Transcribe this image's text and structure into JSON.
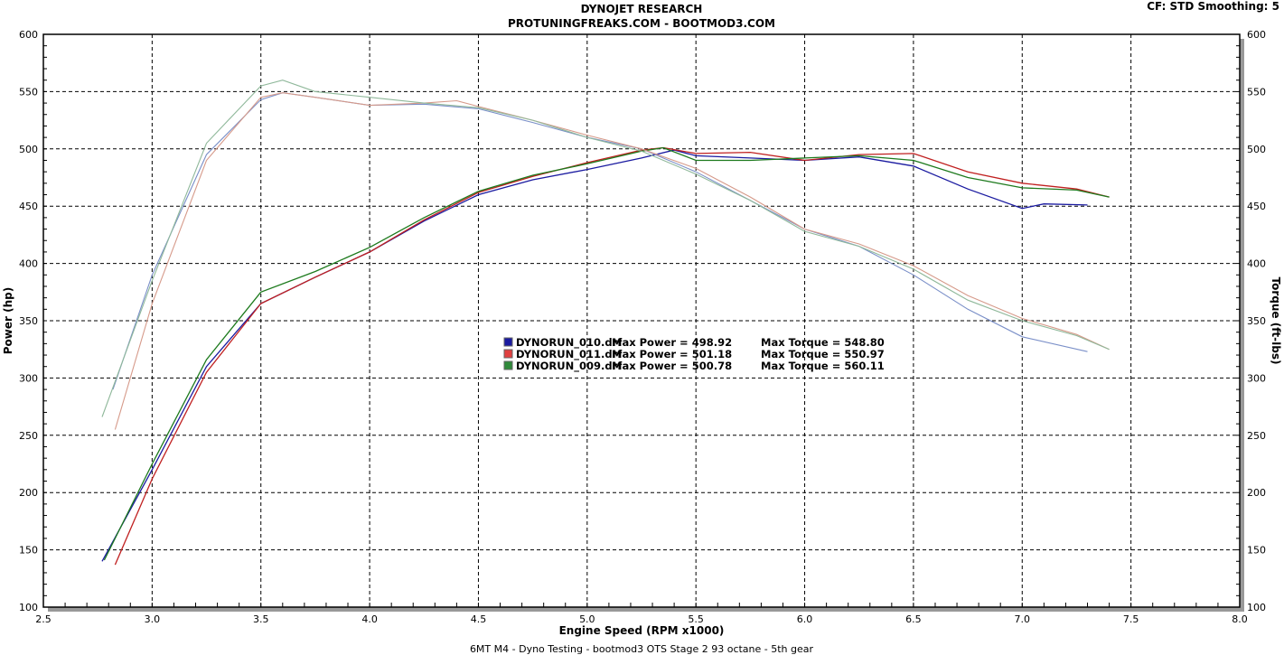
{
  "header": {
    "title": "DYNOJET RESEARCH",
    "subtitle": "PROTUNINGFREAKS.COM - BOOTMOD3.COM",
    "settings": "CF: STD  Smoothing: 5"
  },
  "footer": {
    "caption": "6MT M4 - Dyno Testing - bootmod3 OTS Stage 2 93 octane - 5th gear"
  },
  "chart_data": {
    "type": "line",
    "xlabel": "Engine Speed (RPM x1000)",
    "ylabel": "Power (hp)",
    "y2label": "Torque (ft-lbs)",
    "xlim": [
      2.5,
      8.0
    ],
    "ylim": [
      100,
      600
    ],
    "y2lim": [
      100,
      600
    ],
    "xticks": [
      "2.5",
      "3.0",
      "3.5",
      "4.0",
      "4.5",
      "5.0",
      "5.5",
      "6.0",
      "6.5",
      "7.0",
      "7.5",
      "8.0"
    ],
    "yticks": [
      "100",
      "150",
      "200",
      "250",
      "300",
      "350",
      "400",
      "450",
      "500",
      "550",
      "600"
    ],
    "grid": true,
    "legend": [
      {
        "run": "DYNORUN_010.drf",
        "power_text": "Max Power = 498.92",
        "torque_text": "Max Torque = 548.80",
        "color": "#1a1aa0"
      },
      {
        "run": "DYNORUN_011.drf",
        "power_text": "Max Power = 501.18",
        "torque_text": "Max Torque = 550.97",
        "color": "#c02020"
      },
      {
        "run": "DYNORUN_009.drf",
        "power_text": "Max Power = 500.78",
        "torque_text": "Max Torque = 560.11",
        "color": "#1d7a1d"
      }
    ],
    "series": [
      {
        "name": "DYNORUN_010.drf",
        "kind": "power",
        "color": "#1a1aa0",
        "x": [
          2.77,
          3.0,
          3.25,
          3.5,
          3.75,
          4.0,
          4.25,
          4.5,
          4.75,
          5.0,
          5.25,
          5.4,
          5.5,
          5.75,
          6.0,
          6.25,
          6.5,
          6.75,
          7.0,
          7.1,
          7.3
        ],
        "y": [
          140,
          220,
          310,
          365,
          388,
          410,
          437,
          460,
          473,
          482,
          492,
          499,
          494,
          492,
          490,
          493,
          485,
          465,
          448,
          452,
          451
        ]
      },
      {
        "name": "DYNORUN_011.drf",
        "kind": "power",
        "color": "#c02020",
        "x": [
          2.83,
          3.0,
          3.25,
          3.5,
          3.75,
          4.0,
          4.25,
          4.5,
          4.75,
          5.0,
          5.25,
          5.35,
          5.5,
          5.75,
          6.0,
          6.25,
          6.5,
          6.75,
          7.0,
          7.25,
          7.4
        ],
        "y": [
          137,
          212,
          305,
          365,
          388,
          410,
          438,
          462,
          476,
          488,
          499,
          501,
          496,
          497,
          490,
          495,
          496,
          480,
          470,
          465,
          458
        ]
      },
      {
        "name": "DYNORUN_009.drf",
        "kind": "power",
        "color": "#1d7a1d",
        "x": [
          2.78,
          3.0,
          3.25,
          3.5,
          3.75,
          4.0,
          4.25,
          4.5,
          4.75,
          5.0,
          5.25,
          5.35,
          5.5,
          5.75,
          6.0,
          6.25,
          6.5,
          6.75,
          7.0,
          7.25,
          7.4
        ],
        "y": [
          141,
          225,
          316,
          375,
          393,
          414,
          440,
          463,
          477,
          487,
          498,
          501,
          490,
          490,
          492,
          494,
          490,
          475,
          466,
          464,
          458
        ]
      },
      {
        "name": "DYNORUN_010.drf",
        "kind": "torque",
        "color": "#7a8fc8",
        "x": [
          2.82,
          3.0,
          3.25,
          3.5,
          3.6,
          3.75,
          4.0,
          4.25,
          4.5,
          4.75,
          5.0,
          5.25,
          5.5,
          5.75,
          6.0,
          6.25,
          6.5,
          6.75,
          7.0,
          7.3
        ],
        "y": [
          290,
          390,
          495,
          543,
          549,
          545,
          538,
          539,
          535,
          523,
          510,
          500,
          480,
          455,
          430,
          415,
          390,
          360,
          336,
          323
        ]
      },
      {
        "name": "DYNORUN_011.drf",
        "kind": "torque",
        "color": "#d69a8a",
        "x": [
          2.83,
          3.0,
          3.25,
          3.5,
          3.6,
          3.75,
          4.0,
          4.25,
          4.4,
          4.5,
          4.75,
          5.0,
          5.25,
          5.5,
          5.75,
          6.0,
          6.25,
          6.5,
          6.75,
          7.0,
          7.25,
          7.4
        ],
        "y": [
          255,
          365,
          490,
          545,
          549,
          545,
          538,
          540,
          542,
          537,
          525,
          512,
          500,
          483,
          458,
          430,
          417,
          398,
          372,
          352,
          338,
          325
        ]
      },
      {
        "name": "DYNORUN_009.drf",
        "kind": "torque",
        "color": "#8fb89a",
        "x": [
          2.77,
          3.0,
          3.25,
          3.5,
          3.6,
          3.75,
          4.0,
          4.25,
          4.5,
          4.75,
          5.0,
          5.25,
          5.5,
          5.75,
          6.0,
          6.25,
          6.5,
          6.75,
          7.0,
          7.25,
          7.4
        ],
        "y": [
          266,
          385,
          505,
          555,
          560,
          550,
          545,
          540,
          536,
          525,
          510,
          498,
          478,
          455,
          428,
          415,
          395,
          368,
          350,
          337,
          325
        ]
      }
    ]
  }
}
